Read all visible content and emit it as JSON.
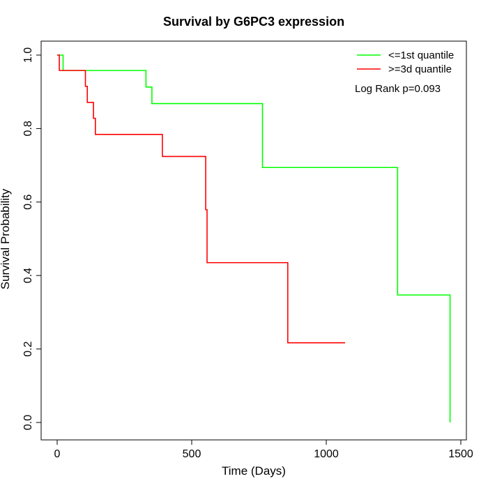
{
  "chart_data": {
    "type": "line",
    "step": true,
    "title": "Survival by G6PC3 expression",
    "xlabel": "Time (Days)",
    "ylabel": "Survival Probability",
    "xlim": [
      0,
      1500
    ],
    "ylim": [
      0,
      1.0
    ],
    "xticks": [
      0,
      500,
      1000,
      1500
    ],
    "yticks": [
      0.0,
      0.2,
      0.4,
      0.6,
      0.8,
      1.0
    ],
    "xtick_labels": [
      "0",
      "500",
      "1000",
      "1500"
    ],
    "ytick_labels": [
      "0.0",
      "0.2",
      "0.4",
      "0.6",
      "0.8",
      "1.0"
    ],
    "grid": false,
    "legend_position": "top-right",
    "annotation": "Log Rank p=0.093",
    "series": [
      {
        "name": "<=1st quantile",
        "color": "#00ff00",
        "x": [
          0,
          22,
          330,
          352,
          763,
          1265,
          1460
        ],
        "y": [
          1.0,
          0.958,
          0.913,
          0.868,
          0.694,
          0.347,
          0.0
        ]
      },
      {
        "name": ">=3d quantile",
        "color": "#ff0000",
        "x": [
          0,
          8,
          105,
          112,
          135,
          142,
          391,
          552,
          557,
          857,
          1070
        ],
        "y": [
          1.0,
          0.958,
          0.915,
          0.871,
          0.828,
          0.784,
          0.724,
          0.579,
          0.435,
          0.217,
          0.217
        ]
      }
    ]
  }
}
